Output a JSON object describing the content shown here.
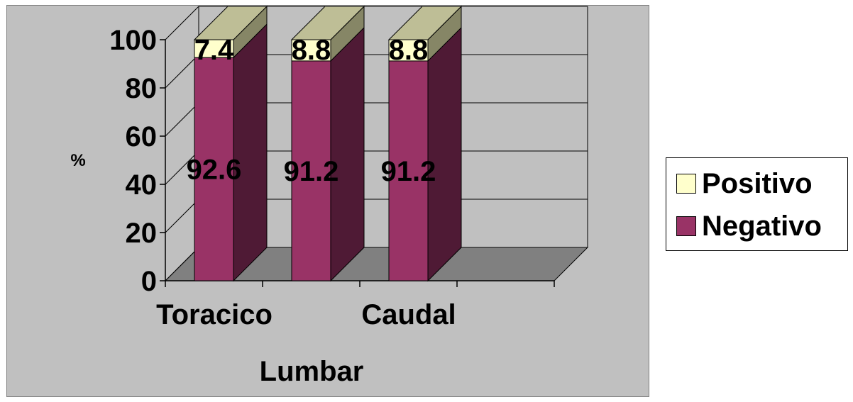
{
  "chart_data": {
    "type": "bar",
    "stacked": true,
    "three_d": true,
    "categories": [
      "Toracico",
      "Lumbar",
      "Caudal"
    ],
    "series": [
      {
        "name": "Negativo",
        "values": [
          92.6,
          91.2,
          91.2
        ],
        "color": "#993366",
        "labels": [
          "92.6",
          "91.2",
          "91.2"
        ]
      },
      {
        "name": "Positivo",
        "values": [
          7.4,
          8.8,
          8.8
        ],
        "color": "#ffffcc",
        "labels": [
          "7.4",
          "8.8",
          "8.8"
        ]
      }
    ],
    "ylabel": "%",
    "ylim": [
      0,
      100
    ],
    "yticks": [
      "0",
      "20",
      "40",
      "60",
      "80",
      "100"
    ],
    "grid": true,
    "legend_position": "right"
  }
}
